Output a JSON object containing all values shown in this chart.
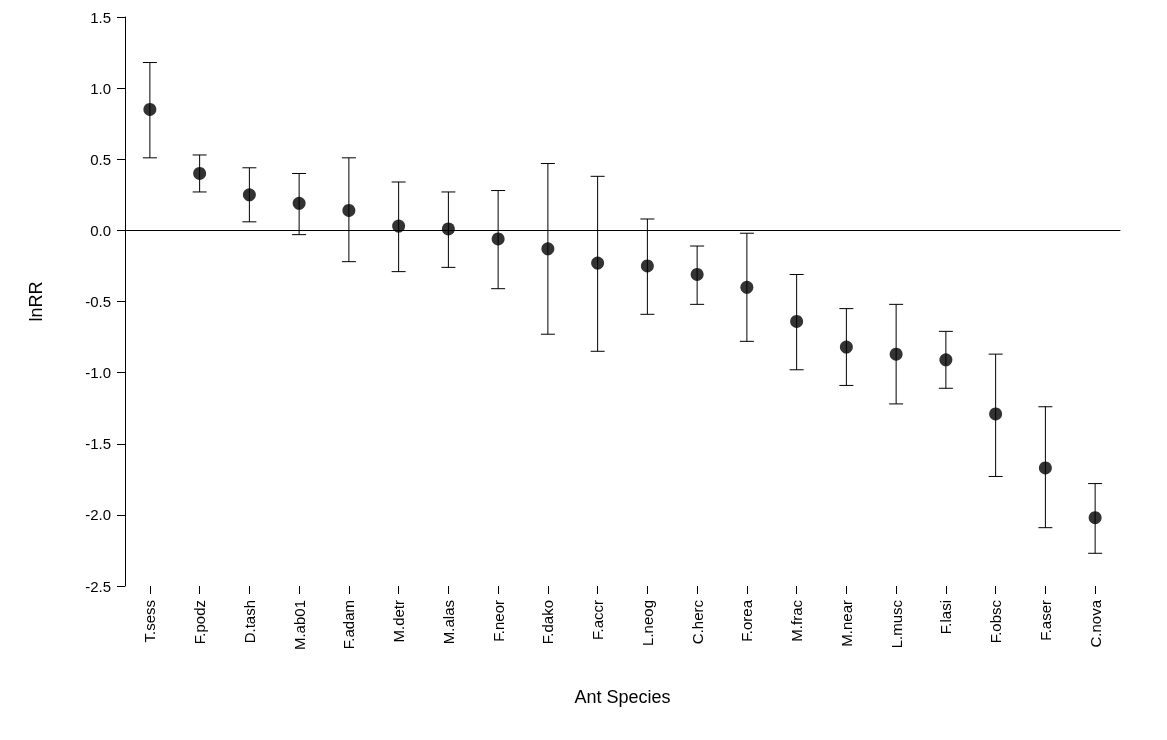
{
  "chart_data": {
    "type": "scatter",
    "xlabel": "Ant Species",
    "ylabel": "lnRR",
    "categories": [
      "T.sess",
      "F.podz",
      "D.tash",
      "M.ab01",
      "F.adam",
      "M.detr",
      "M.alas",
      "F.neor",
      "F.dako",
      "F.accr",
      "L.neog",
      "C.herc",
      "F.orea",
      "M.frac",
      "M.near",
      "L.musc",
      "F.lasi",
      "F.obsc",
      "F.aser",
      "C.nova"
    ],
    "values": [
      0.85,
      0.4,
      0.25,
      0.19,
      0.14,
      0.03,
      0.01,
      -0.06,
      -0.13,
      -0.23,
      -0.25,
      -0.31,
      -0.4,
      -0.64,
      -0.82,
      -0.87,
      -0.91,
      -1.29,
      -1.67,
      -2.02
    ],
    "errors": [
      [
        0.51,
        1.18
      ],
      [
        0.27,
        0.53
      ],
      [
        0.06,
        0.44
      ],
      [
        -0.03,
        0.4
      ],
      [
        -0.22,
        0.51
      ],
      [
        -0.29,
        0.34
      ],
      [
        -0.26,
        0.27
      ],
      [
        -0.41,
        0.28
      ],
      [
        -0.73,
        0.47
      ],
      [
        -0.85,
        0.38
      ],
      [
        -0.59,
        0.08
      ],
      [
        -0.52,
        -0.11
      ],
      [
        -0.78,
        -0.02
      ],
      [
        -0.98,
        -0.31
      ],
      [
        -1.09,
        -0.55
      ],
      [
        -1.22,
        -0.52
      ],
      [
        -1.11,
        -0.71
      ],
      [
        -1.73,
        -0.87
      ],
      [
        -2.09,
        -1.24
      ],
      [
        -2.27,
        -1.78
      ]
    ],
    "color": "#000000",
    "ylim": [
      -2.5,
      1.5
    ],
    "yticks": [
      {
        "value": -2.5,
        "label": "-2.5"
      },
      {
        "value": -2.0,
        "label": "-2.0"
      },
      {
        "value": -1.5,
        "label": "-1.5"
      },
      {
        "value": -1.0,
        "label": "-1.0"
      },
      {
        "value": -0.5,
        "label": "-0.5"
      },
      {
        "value": 0,
        "label": "0.0"
      },
      {
        "value": 0.5,
        "label": "0.5"
      },
      {
        "value": 1.0,
        "label": "1.0"
      },
      {
        "value": 1.5,
        "label": "1.5"
      }
    ],
    "ref_lines": [
      {
        "axis": "y",
        "value": 0,
        "color": "#000000"
      }
    ],
    "marker": "circle",
    "grid": false
  }
}
